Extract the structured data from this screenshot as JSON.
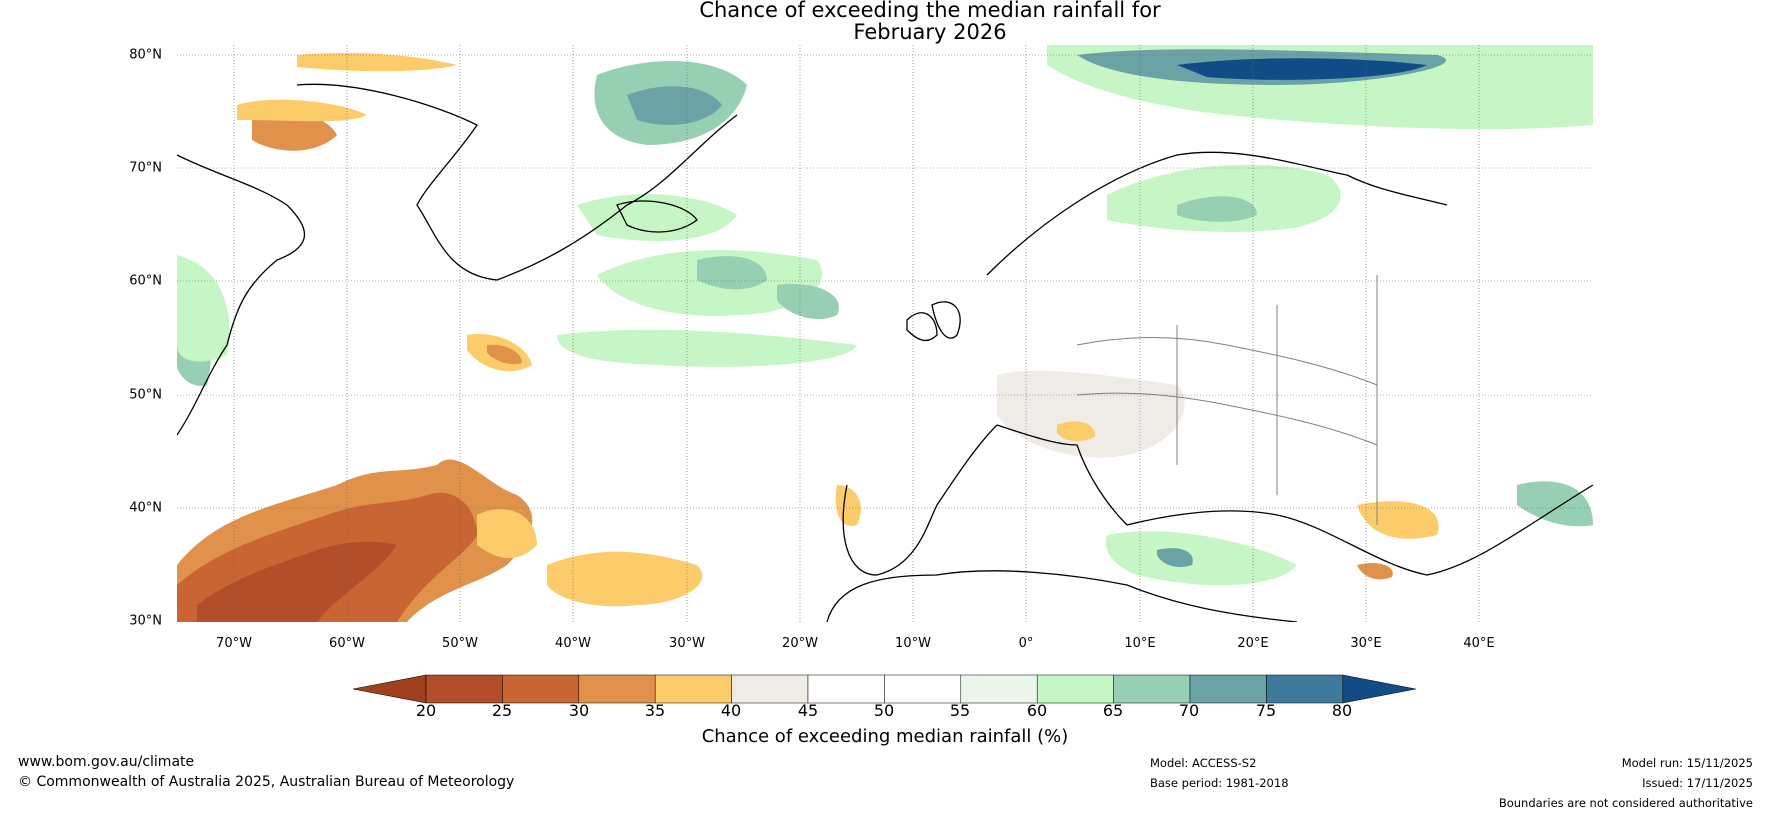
{
  "title": {
    "line1": "Chance of exceeding the median rainfall for",
    "line2": "February 2026"
  },
  "map": {
    "lat_labels": [
      "80°N",
      "70°N",
      "60°N",
      "50°N",
      "40°N",
      "30°N"
    ],
    "lon_labels": [
      "70°W",
      "60°W",
      "50°W",
      "40°W",
      "30°W",
      "20°W",
      "10°W",
      "0°",
      "10°E",
      "20°E",
      "30°E",
      "40°E"
    ],
    "lat_range": [
      30,
      81
    ],
    "lon_range": [
      -75,
      50
    ]
  },
  "colorbar": {
    "ticks": [
      "20",
      "25",
      "30",
      "35",
      "40",
      "45",
      "50",
      "55",
      "60",
      "65",
      "70",
      "75",
      "80"
    ],
    "label": "Chance of exceeding median rainfall (%)",
    "colors": [
      "#a0401d",
      "#b24e29",
      "#c96533",
      "#e0914a",
      "#fdcc6a",
      "#efebe6",
      "#ffffff",
      "#ffffff",
      "#e9f6e9",
      "#c6f5c6",
      "#97cfb3",
      "#6ba2a6",
      "#3f7a9c",
      "#124c86"
    ]
  },
  "footer": {
    "website": "www.bom.gov.au/climate",
    "copyright": "© Commonwealth of Australia 2025, Australian Bureau of Meteorology",
    "model": "Model: ACCESS-S2",
    "base_period": "Base period: 1981-2018",
    "model_run": "Model run: 15/11/2025",
    "issued": "Issued: 17/11/2025",
    "disclaimer": "Boundaries are not considered authoritative"
  }
}
